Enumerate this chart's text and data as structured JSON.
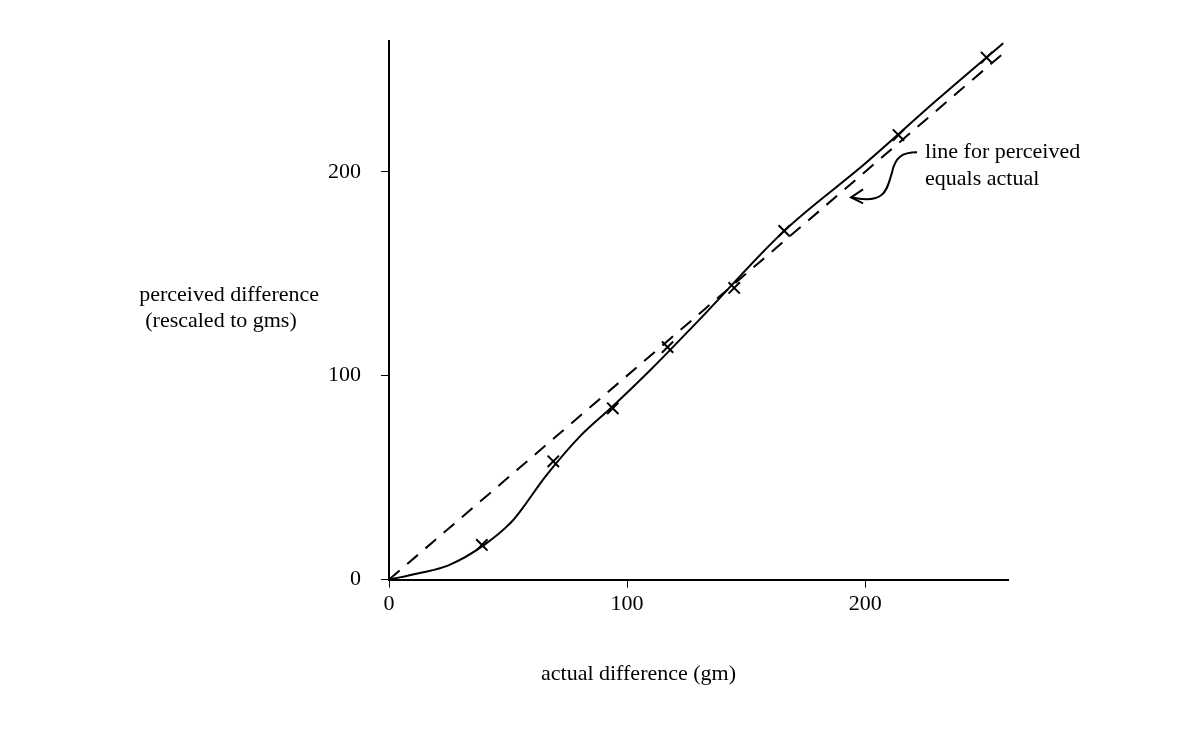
{
  "chart_data": {
    "type": "line",
    "xlabel": "actual difference (gm)",
    "ylabel": "perceived difference\n(rescaled to gms)",
    "xlim": [
      0,
      260
    ],
    "ylim": [
      0,
      264
    ],
    "xticks": [
      0,
      100,
      200
    ],
    "yticks": [
      0,
      100,
      200
    ],
    "grid": false,
    "legend": false,
    "series": [
      {
        "type": "scatter",
        "marker": "cross",
        "color": "#000000",
        "x": [
          39,
          69,
          94,
          117,
          145,
          166,
          214,
          251
        ],
        "values": [
          17,
          58,
          84,
          114,
          143,
          171,
          218,
          256
        ]
      },
      {
        "line_style": "solid",
        "marker": "none",
        "color": "#000000",
        "x": [
          0,
          12,
          25,
          40,
          52,
          66,
          80,
          94,
          110,
          130,
          166,
          200,
          230,
          258
        ],
        "values": [
          0,
          3,
          7,
          17,
          29,
          51,
          70,
          85,
          103,
          127,
          171,
          204,
          235,
          263
        ]
      },
      {
        "line_style": "dashed",
        "marker": "none",
        "color": "#000000",
        "x": [
          0,
          258
        ],
        "values": [
          0,
          258
        ]
      }
    ],
    "annotations": [
      "line for perceived\nequals actual"
    ]
  }
}
